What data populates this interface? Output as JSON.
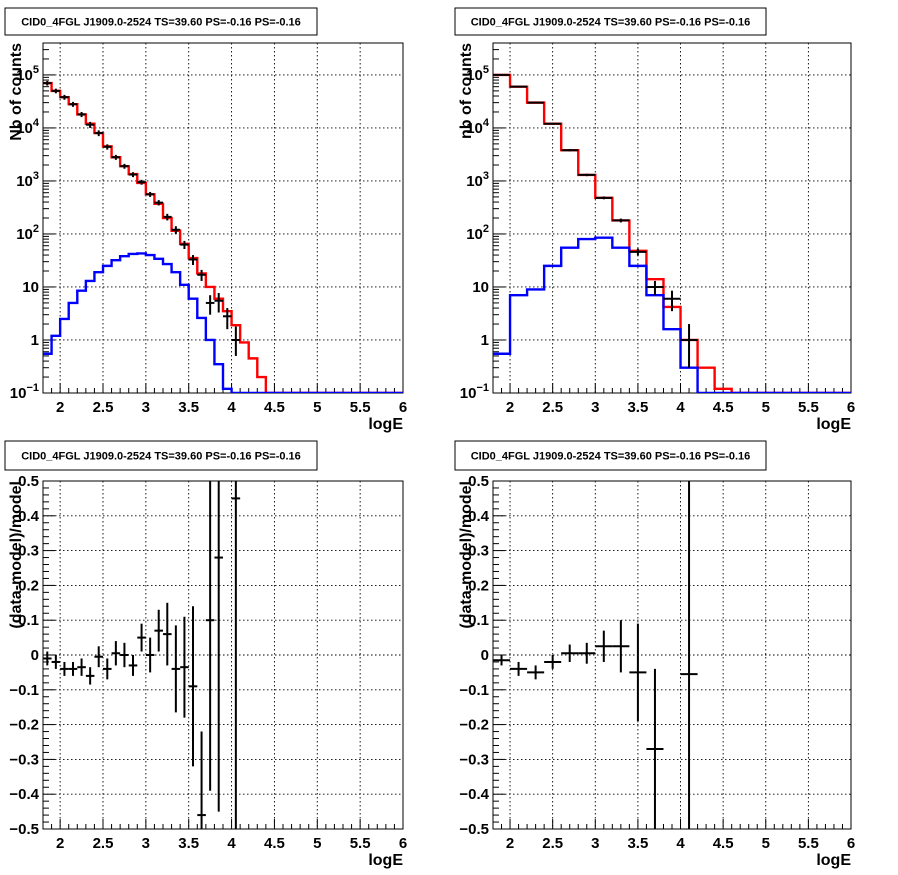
{
  "chart_data": [
    {
      "id": "tl",
      "type": "step",
      "title": "CID0_4FGL J1909.0-2524 TS=39.60 PS=-0.16 PS=-0.16",
      "xlabel": "logE",
      "ylabel": "Nb of counts",
      "xlim": [
        1.8,
        6.0
      ],
      "ylim": [
        0.1,
        400000
      ],
      "ylog": true,
      "grid": true,
      "xticks": [
        "2",
        "2.5",
        "3",
        "3.5",
        "4",
        "4.5",
        "5",
        "5.5",
        "6"
      ],
      "yticks": [
        {
          "v": 0.1,
          "base": "10",
          "exp": "−1"
        },
        {
          "v": 1,
          "label": "1"
        },
        {
          "v": 10,
          "label": "10"
        },
        {
          "v": 100,
          "base": "10",
          "exp": "2"
        },
        {
          "v": 1000,
          "base": "10",
          "exp": "3"
        },
        {
          "v": 10000,
          "base": "10",
          "exp": "4"
        },
        {
          "v": 100000,
          "base": "10",
          "exp": "5"
        }
      ],
      "bin_edges": [
        1.8,
        1.9,
        2.0,
        2.1,
        2.2,
        2.3,
        2.4,
        2.5,
        2.6,
        2.7,
        2.8,
        2.9,
        3.0,
        3.1,
        3.2,
        3.3,
        3.4,
        3.5,
        3.6,
        3.7,
        3.8,
        3.9,
        4.0,
        4.1,
        4.2,
        4.3,
        4.4,
        4.5,
        4.6,
        4.7,
        4.8,
        4.9,
        5.0,
        5.1,
        5.2,
        5.3,
        5.4,
        5.5,
        5.6,
        5.7,
        5.8,
        5.9,
        6.0
      ],
      "series": [
        {
          "color": "#ff0000",
          "values": [
            70000,
            50000,
            38000,
            28000,
            18000,
            12000,
            8000,
            4500,
            2800,
            1900,
            1350,
            920,
            560,
            370,
            200,
            115,
            65,
            35,
            18,
            10,
            6,
            3.5,
            1.9,
            0.9,
            0.45,
            0.2,
            0.1,
            0,
            0,
            0,
            0,
            0,
            0,
            0,
            0,
            0,
            0,
            0,
            0,
            0,
            0,
            0
          ]
        },
        {
          "color": "#0000ff",
          "values": [
            0.55,
            1.2,
            2.5,
            5,
            8.5,
            13,
            19,
            25,
            32,
            38,
            42,
            43,
            40,
            34,
            27,
            19,
            11,
            6,
            2.6,
            1.0,
            0.35,
            0.12,
            0.1,
            0,
            0,
            0,
            0,
            0,
            0,
            0,
            0,
            0,
            0,
            0,
            0,
            0,
            0,
            0,
            0,
            0,
            0,
            0
          ]
        }
      ],
      "points": [
        {
          "x": 1.85,
          "y": 70000,
          "el": 63000,
          "eh": 77000
        },
        {
          "x": 1.95,
          "y": 50000,
          "el": 45000,
          "eh": 55000
        },
        {
          "x": 2.05,
          "y": 38000,
          "el": 34000,
          "eh": 42000
        },
        {
          "x": 2.15,
          "y": 28000,
          "el": 25000,
          "eh": 31000
        },
        {
          "x": 2.25,
          "y": 18000,
          "el": 16000,
          "eh": 20000
        },
        {
          "x": 2.35,
          "y": 11500,
          "el": 10000,
          "eh": 13000
        },
        {
          "x": 2.45,
          "y": 8000,
          "el": 7000,
          "eh": 9000
        },
        {
          "x": 2.55,
          "y": 4400,
          "el": 3900,
          "eh": 4900
        },
        {
          "x": 2.65,
          "y": 2800,
          "el": 2500,
          "eh": 3100
        },
        {
          "x": 2.75,
          "y": 1900,
          "el": 1700,
          "eh": 2100
        },
        {
          "x": 2.85,
          "y": 1320,
          "el": 1180,
          "eh": 1460
        },
        {
          "x": 2.95,
          "y": 950,
          "el": 850,
          "eh": 1050
        },
        {
          "x": 3.05,
          "y": 560,
          "el": 500,
          "eh": 620
        },
        {
          "x": 3.15,
          "y": 390,
          "el": 345,
          "eh": 435
        },
        {
          "x": 3.25,
          "y": 210,
          "el": 180,
          "eh": 240
        },
        {
          "x": 3.35,
          "y": 120,
          "el": 100,
          "eh": 140
        },
        {
          "x": 3.45,
          "y": 63,
          "el": 52,
          "eh": 74
        },
        {
          "x": 3.55,
          "y": 33,
          "el": 26,
          "eh": 40
        },
        {
          "x": 3.65,
          "y": 17,
          "el": 13,
          "eh": 21
        },
        {
          "x": 3.75,
          "y": 5,
          "el": 3,
          "eh": 7
        },
        {
          "x": 3.85,
          "y": 5.5,
          "el": 3.3,
          "eh": 7.7
        },
        {
          "x": 3.95,
          "y": 2.8,
          "el": 1.6,
          "eh": 4.0
        },
        {
          "x": 4.05,
          "y": 1.0,
          "el": 0.5,
          "eh": 1.8
        }
      ]
    },
    {
      "id": "tr",
      "type": "step",
      "title": "CID0_4FGL J1909.0-2524 TS=39.60 PS=-0.16 PS=-0.16",
      "xlabel": "logE",
      "ylabel": "nb of counts",
      "xlim": [
        1.8,
        6.0
      ],
      "ylim": [
        0.1,
        400000
      ],
      "ylog": true,
      "grid": true,
      "xticks": [
        "2",
        "2.5",
        "3",
        "3.5",
        "4",
        "4.5",
        "5",
        "5.5",
        "6"
      ],
      "yticks": [
        {
          "v": 0.1,
          "base": "10",
          "exp": "−1"
        },
        {
          "v": 1,
          "label": "1"
        },
        {
          "v": 10,
          "label": "10"
        },
        {
          "v": 100,
          "base": "10",
          "exp": "2"
        },
        {
          "v": 1000,
          "base": "10",
          "exp": "3"
        },
        {
          "v": 10000,
          "base": "10",
          "exp": "4"
        },
        {
          "v": 100000,
          "base": "10",
          "exp": "5"
        }
      ],
      "bin_edges": [
        1.8,
        2.0,
        2.2,
        2.4,
        2.6,
        2.8,
        3.0,
        3.2,
        3.4,
        3.6,
        3.8,
        4.0,
        4.2,
        4.4,
        4.6,
        4.8,
        5.0,
        5.2,
        5.4,
        5.6,
        5.8,
        6.0
      ],
      "series": [
        {
          "color": "#ff0000",
          "values": [
            100000,
            60000,
            30000,
            12000,
            3800,
            1300,
            480,
            180,
            48,
            14,
            4.2,
            1.0,
            0.3,
            0.12,
            0,
            0,
            0,
            0,
            0,
            0,
            0
          ]
        },
        {
          "color": "#0000ff",
          "values": [
            0.55,
            7,
            9,
            25,
            55,
            80,
            85,
            55,
            25,
            7,
            1.6,
            0.3,
            0,
            0,
            0,
            0,
            0,
            0,
            0,
            0,
            0
          ]
        }
      ],
      "points": [
        {
          "x": 1.9,
          "y": 100000,
          "el": 97000,
          "eh": 103000
        },
        {
          "x": 2.1,
          "y": 60000,
          "el": 58000,
          "eh": 62000
        },
        {
          "x": 2.3,
          "y": 30000,
          "el": 29000,
          "eh": 31000
        },
        {
          "x": 2.5,
          "y": 12000,
          "el": 11500,
          "eh": 12500
        },
        {
          "x": 2.7,
          "y": 3800,
          "el": 3600,
          "eh": 4000
        },
        {
          "x": 2.9,
          "y": 1300,
          "el": 1230,
          "eh": 1370
        },
        {
          "x": 3.1,
          "y": 480,
          "el": 450,
          "eh": 510
        },
        {
          "x": 3.3,
          "y": 180,
          "el": 165,
          "eh": 195
        },
        {
          "x": 3.5,
          "y": 46,
          "el": 39,
          "eh": 53
        },
        {
          "x": 3.7,
          "y": 10,
          "el": 7,
          "eh": 13
        },
        {
          "x": 3.9,
          "y": 6,
          "el": 3.5,
          "eh": 8.5
        },
        {
          "x": 4.1,
          "y": 1.0,
          "el": 0.3,
          "eh": 2.0
        }
      ]
    },
    {
      "id": "bl",
      "type": "errorbar",
      "title": "CID0_4FGL J1909.0-2524 TS=39.60 PS=-0.16 PS=-0.16",
      "xlabel": "logE",
      "ylabel": "(data-model)/model",
      "xlim": [
        1.8,
        6.0
      ],
      "ylim": [
        -0.5,
        0.5
      ],
      "ylog": false,
      "grid": true,
      "xticks": [
        "2",
        "2.5",
        "3",
        "3.5",
        "4",
        "4.5",
        "5",
        "5.5",
        "6"
      ],
      "yticks": [
        {
          "v": -0.5,
          "label": "−0.5"
        },
        {
          "v": -0.4,
          "label": "−0.4"
        },
        {
          "v": -0.3,
          "label": "−0.3"
        },
        {
          "v": -0.2,
          "label": "−0.2"
        },
        {
          "v": -0.1,
          "label": "−0.1"
        },
        {
          "v": 0,
          "label": "0"
        },
        {
          "v": 0.1,
          "label": "0.1"
        },
        {
          "v": 0.2,
          "label": "0.2"
        },
        {
          "v": 0.3,
          "label": "0.3"
        },
        {
          "v": 0.4,
          "label": "0.4"
        },
        {
          "v": 0.5,
          "label": "0.5"
        }
      ],
      "half_width": 0.05,
      "points": [
        {
          "x": 1.85,
          "y": -0.01,
          "el": -0.03,
          "eh": 0.01
        },
        {
          "x": 1.95,
          "y": -0.02,
          "el": -0.04,
          "eh": 0.0
        },
        {
          "x": 2.05,
          "y": -0.04,
          "el": -0.06,
          "eh": -0.02
        },
        {
          "x": 2.15,
          "y": -0.04,
          "el": -0.06,
          "eh": -0.02
        },
        {
          "x": 2.25,
          "y": -0.035,
          "el": -0.06,
          "eh": -0.01
        },
        {
          "x": 2.35,
          "y": -0.06,
          "el": -0.085,
          "eh": -0.035
        },
        {
          "x": 2.45,
          "y": -0.005,
          "el": -0.035,
          "eh": 0.025
        },
        {
          "x": 2.55,
          "y": -0.04,
          "el": -0.07,
          "eh": -0.01
        },
        {
          "x": 2.65,
          "y": 0.005,
          "el": -0.03,
          "eh": 0.04
        },
        {
          "x": 2.75,
          "y": 0.0,
          "el": -0.035,
          "eh": 0.035
        },
        {
          "x": 2.85,
          "y": -0.03,
          "el": -0.06,
          "eh": 0.0
        },
        {
          "x": 2.95,
          "y": 0.05,
          "el": 0.01,
          "eh": 0.09
        },
        {
          "x": 3.05,
          "y": 0.0,
          "el": -0.05,
          "eh": 0.05
        },
        {
          "x": 3.15,
          "y": 0.07,
          "el": 0.01,
          "eh": 0.13
        },
        {
          "x": 3.25,
          "y": 0.06,
          "el": -0.03,
          "eh": 0.15
        },
        {
          "x": 3.35,
          "y": -0.04,
          "el": -0.165,
          "eh": 0.085
        },
        {
          "x": 3.45,
          "y": -0.035,
          "el": -0.18,
          "eh": 0.11
        },
        {
          "x": 3.55,
          "y": -0.09,
          "el": -0.32,
          "eh": 0.14
        },
        {
          "x": 3.65,
          "y": -0.46,
          "el": -0.5,
          "eh": -0.22
        },
        {
          "x": 3.75,
          "y": 0.1,
          "el": -0.39,
          "eh": 0.5
        },
        {
          "x": 3.85,
          "y": 0.28,
          "el": -0.45,
          "eh": 0.5
        },
        {
          "x": 4.05,
          "y": 0.45,
          "el": -0.5,
          "eh": 0.5
        }
      ]
    },
    {
      "id": "br",
      "type": "errorbar",
      "title": "CID0_4FGL J1909.0-2524 TS=39.60 PS=-0.16 PS=-0.16",
      "xlabel": "logE",
      "ylabel": "(data-model)/model",
      "xlim": [
        1.8,
        6.0
      ],
      "ylim": [
        -0.5,
        0.5
      ],
      "ylog": false,
      "grid": true,
      "xticks": [
        "2",
        "2.5",
        "3",
        "3.5",
        "4",
        "4.5",
        "5",
        "5.5",
        "6"
      ],
      "yticks": [
        {
          "v": -0.5,
          "label": "−0.5"
        },
        {
          "v": -0.4,
          "label": "−0.4"
        },
        {
          "v": -0.3,
          "label": "−0.3"
        },
        {
          "v": -0.2,
          "label": "−0.2"
        },
        {
          "v": -0.1,
          "label": "−0.1"
        },
        {
          "v": 0,
          "label": "0"
        },
        {
          "v": 0.1,
          "label": "0.1"
        },
        {
          "v": 0.2,
          "label": "0.2"
        },
        {
          "v": 0.3,
          "label": "0.3"
        },
        {
          "v": 0.4,
          "label": "0.4"
        },
        {
          "v": 0.5,
          "label": "0.5"
        }
      ],
      "half_width": 0.1,
      "points": [
        {
          "x": 1.9,
          "y": -0.015,
          "el": -0.03,
          "eh": 0.0
        },
        {
          "x": 2.1,
          "y": -0.04,
          "el": -0.06,
          "eh": -0.02
        },
        {
          "x": 2.3,
          "y": -0.05,
          "el": -0.07,
          "eh": -0.03
        },
        {
          "x": 2.5,
          "y": -0.02,
          "el": -0.04,
          "eh": 0.0
        },
        {
          "x": 2.7,
          "y": 0.005,
          "el": -0.02,
          "eh": 0.03
        },
        {
          "x": 2.9,
          "y": 0.005,
          "el": -0.025,
          "eh": 0.035
        },
        {
          "x": 3.1,
          "y": 0.025,
          "el": -0.02,
          "eh": 0.07
        },
        {
          "x": 3.3,
          "y": 0.025,
          "el": -0.05,
          "eh": 0.1
        },
        {
          "x": 3.5,
          "y": -0.05,
          "el": -0.19,
          "eh": 0.09
        },
        {
          "x": 3.7,
          "y": -0.27,
          "el": -0.5,
          "eh": -0.04
        },
        {
          "x": 4.1,
          "y": -0.055,
          "el": -0.5,
          "eh": 0.5
        }
      ]
    }
  ]
}
